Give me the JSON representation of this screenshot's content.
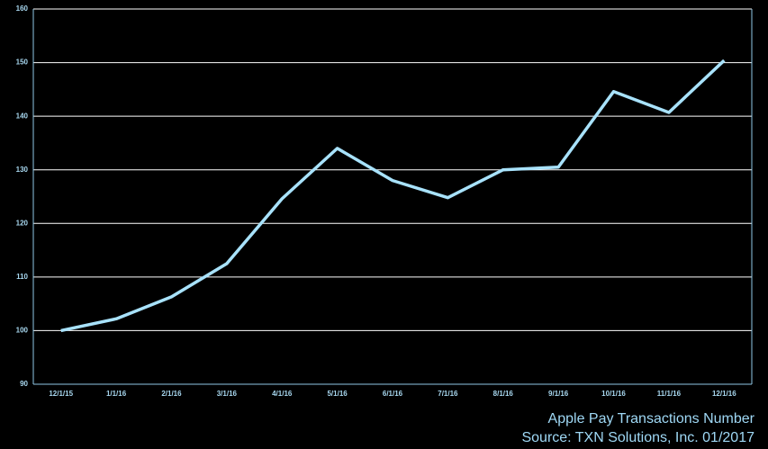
{
  "chart_data": {
    "type": "line",
    "title": "Apple Pay Transactions Number",
    "source": "Source: TXN Solutions, Inc. 01/2017",
    "categories": [
      "12/1/15",
      "1/1/16",
      "2/1/16",
      "3/1/16",
      "4/1/16",
      "5/1/16",
      "6/1/16",
      "7/1/16",
      "8/1/16",
      "9/1/16",
      "10/1/16",
      "11/1/16",
      "12/1/16"
    ],
    "series": [
      {
        "name": "Apple Pay Transactions",
        "color": "#a8e2fb",
        "values": [
          100,
          102.2,
          106.3,
          112.5,
          124.6,
          134,
          128,
          124.8,
          130,
          130.5,
          144.6,
          140.7,
          150.4
        ]
      }
    ],
    "ylim": [
      90,
      160
    ],
    "yticks": [
      90,
      100,
      110,
      120,
      130,
      140,
      150,
      160
    ],
    "grid": true
  }
}
